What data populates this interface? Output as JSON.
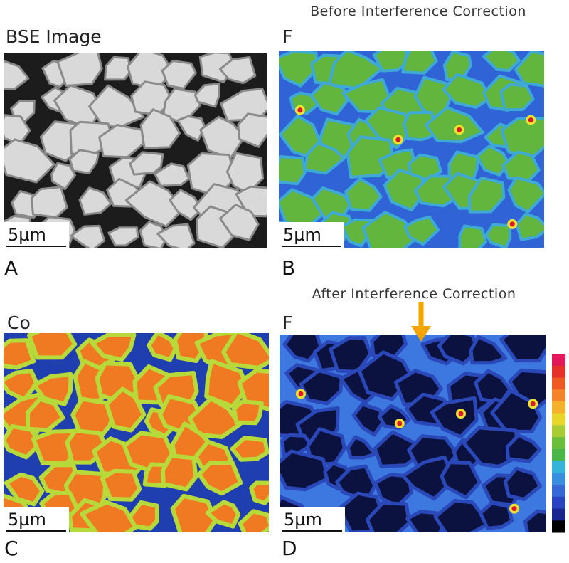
{
  "panels": [
    {
      "letter": "A",
      "title": "BSE Image",
      "scale": "5µm"
    },
    {
      "letter": "B",
      "title": "F",
      "caption": "Before Interference Correction",
      "scale": "5µm"
    },
    {
      "letter": "C",
      "title": "Co",
      "scale": "5µm"
    },
    {
      "letter": "D",
      "title": "F",
      "caption": "After Interference Correction",
      "scale": "5µm"
    }
  ]
}
